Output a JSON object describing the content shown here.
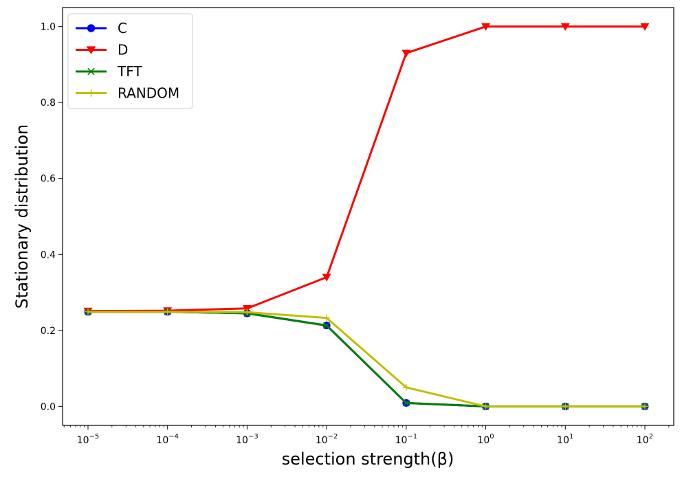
{
  "chart_data": {
    "type": "line",
    "title": "",
    "xlabel": "selection strength(β)",
    "ylabel": "Stationary distribution",
    "xscale": "log",
    "x": [
      1e-05,
      0.0001,
      0.001,
      0.01,
      0.1,
      1,
      10,
      100
    ],
    "x_tick_labels": [
      {
        "base": "10",
        "exp": "−5"
      },
      {
        "base": "10",
        "exp": "−4"
      },
      {
        "base": "10",
        "exp": "−3"
      },
      {
        "base": "10",
        "exp": "−2"
      },
      {
        "base": "10",
        "exp": "−1"
      },
      {
        "base": "10",
        "exp": "0"
      },
      {
        "base": "10",
        "exp": "1"
      },
      {
        "base": "10",
        "exp": "2"
      }
    ],
    "ylim": [
      -0.05,
      1.05
    ],
    "y_ticks": [
      "0.0",
      "0.2",
      "0.4",
      "0.6",
      "0.8",
      "1.0"
    ],
    "grid": false,
    "legend_position": "top-left",
    "series": [
      {
        "name": "C",
        "color": "#0000ff",
        "marker": "circle",
        "values": [
          0.249,
          0.249,
          0.245,
          0.213,
          0.009,
          0.0,
          0.0,
          0.0
        ]
      },
      {
        "name": "D",
        "color": "#ff0000",
        "marker": "triangle-down",
        "values": [
          0.251,
          0.252,
          0.258,
          0.34,
          0.93,
          1.0,
          1.0,
          1.0
        ]
      },
      {
        "name": "TFT",
        "color": "#008000",
        "marker": "x",
        "values": [
          0.249,
          0.249,
          0.245,
          0.213,
          0.009,
          0.0,
          0.0,
          0.0
        ]
      },
      {
        "name": "RANDOM",
        "color": "#bfbf00",
        "marker": "plus",
        "values": [
          0.249,
          0.249,
          0.248,
          0.233,
          0.05,
          0.0,
          0.0,
          0.0
        ]
      }
    ]
  }
}
